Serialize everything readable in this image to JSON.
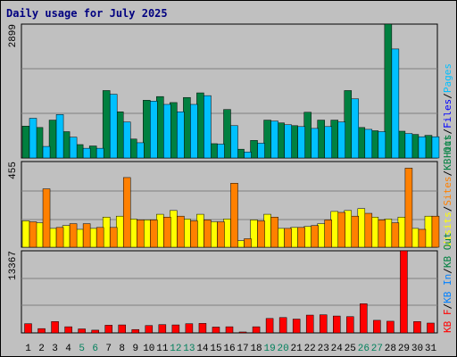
{
  "title": "Daily usage for July 2025",
  "colors": {
    "background": "#c0c0c0",
    "hits": "#008040",
    "files": "#00c0ff",
    "sites": "#ff8000",
    "visits": "#ffff00",
    "kbytes": "#ff0000",
    "weekend_label": "#00805c",
    "gridline": "#808080",
    "title": "#000080"
  },
  "chart_data": [
    {
      "type": "bar",
      "panel": "hits-files",
      "ymax": 2899,
      "ymax_label": "2899",
      "legend": [
        {
          "text": "Hits",
          "color": "#008040"
        },
        {
          "text": "/",
          "color": "#000000"
        },
        {
          "text": "Files",
          "color": "#0000ff"
        },
        {
          "text": "/",
          "color": "#000000"
        },
        {
          "text": "Pages",
          "color": "#00c0ff"
        }
      ],
      "categories": [
        "1",
        "2",
        "3",
        "4",
        "5",
        "6",
        "7",
        "8",
        "9",
        "10",
        "11",
        "12",
        "13",
        "14",
        "15",
        "16",
        "17",
        "18",
        "19",
        "20",
        "21",
        "22",
        "23",
        "24",
        "25",
        "26",
        "27",
        "28",
        "29",
        "30",
        "31"
      ],
      "series": [
        {
          "name": "Hits",
          "values": [
            690,
            660,
            820,
            570,
            290,
            260,
            1460,
            1000,
            410,
            1250,
            1330,
            1200,
            1310,
            1410,
            310,
            1050,
            190,
            380,
            820,
            760,
            700,
            990,
            820,
            820,
            1460,
            660,
            590,
            2899,
            580,
            510,
            490
          ]
        },
        {
          "name": "Files",
          "values": [
            860,
            250,
            940,
            450,
            210,
            210,
            1380,
            780,
            330,
            1230,
            1160,
            1000,
            1160,
            1350,
            300,
            700,
            130,
            320,
            800,
            720,
            680,
            640,
            680,
            780,
            1280,
            620,
            570,
            2360,
            530,
            460,
            460
          ]
        }
      ]
    },
    {
      "type": "bar",
      "panel": "visits-sites",
      "ymax": 455,
      "ymax_label": "455",
      "legend": [
        {
          "text": "Visits",
          "color": "#ffff00"
        },
        {
          "text": "/",
          "color": "#000000"
        },
        {
          "text": "Sites",
          "color": "#ff8000"
        },
        {
          "text": "/",
          "color": "#000000"
        },
        {
          "text": "KB Out",
          "color": "#008040"
        }
      ],
      "categories": [
        "1",
        "2",
        "3",
        "4",
        "5",
        "6",
        "7",
        "8",
        "9",
        "10",
        "11",
        "12",
        "13",
        "14",
        "15",
        "16",
        "17",
        "18",
        "19",
        "20",
        "21",
        "22",
        "23",
        "24",
        "25",
        "26",
        "27",
        "28",
        "29",
        "30",
        "31"
      ],
      "series": [
        {
          "name": "Visits",
          "values": [
            140,
            130,
            100,
            115,
            95,
            100,
            160,
            165,
            150,
            145,
            175,
            195,
            150,
            175,
            135,
            150,
            35,
            145,
            175,
            100,
            105,
            110,
            125,
            190,
            195,
            205,
            160,
            150,
            160,
            100,
            165
          ]
        },
        {
          "name": "Sites",
          "values": [
            135,
            310,
            105,
            125,
            125,
            105,
            105,
            370,
            145,
            145,
            160,
            165,
            140,
            145,
            135,
            340,
            45,
            140,
            160,
            100,
            105,
            115,
            145,
            185,
            165,
            180,
            145,
            130,
            420,
            95,
            165
          ]
        }
      ]
    },
    {
      "type": "bar",
      "panel": "kbytes",
      "ymax": 13367,
      "ymax_label": "13367",
      "legend": [
        {
          "text": "KB F",
          "color": "#ff0000"
        },
        {
          "text": "/",
          "color": "#000000"
        },
        {
          "text": "KB In",
          "color": "#0080ff"
        },
        {
          "text": "/",
          "color": "#000000"
        },
        {
          "text": "KB Out",
          "color": "#008040"
        }
      ],
      "categories": [
        "1",
        "2",
        "3",
        "4",
        "5",
        "6",
        "7",
        "8",
        "9",
        "10",
        "11",
        "12",
        "13",
        "14",
        "15",
        "16",
        "17",
        "18",
        "19",
        "20",
        "21",
        "22",
        "23",
        "24",
        "25",
        "26",
        "27",
        "28",
        "29",
        "30",
        "31"
      ],
      "series": [
        {
          "name": "KB F",
          "values": [
            1500,
            700,
            1850,
            1000,
            650,
            450,
            1250,
            1300,
            550,
            1200,
            1350,
            1300,
            1500,
            1550,
            950,
            1000,
            150,
            1000,
            2350,
            2500,
            2250,
            2900,
            2950,
            2750,
            2650,
            4750,
            2050,
            1900,
            13367,
            1850,
            1600
          ]
        }
      ]
    }
  ],
  "weekend_days": [
    5,
    6,
    12,
    13,
    19,
    20,
    26,
    27
  ]
}
